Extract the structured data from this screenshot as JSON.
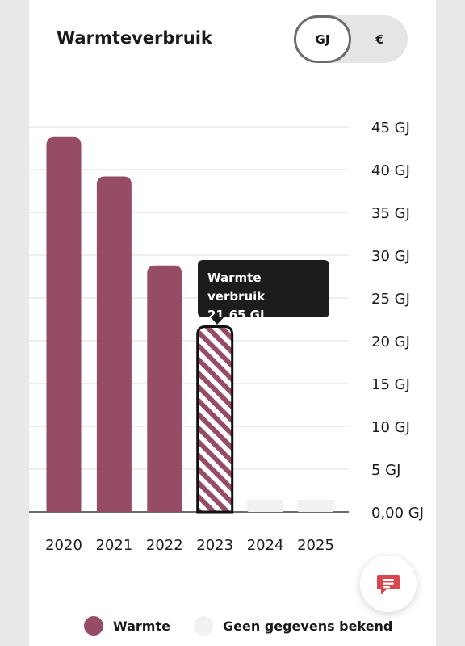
{
  "title": "Warmteverbruik",
  "toggle": {
    "options": [
      "GJ",
      "€"
    ],
    "selected": "GJ"
  },
  "colors": {
    "warmte": "#974c65",
    "no_data": "#f1f1f1",
    "grid": "#dcdcdc",
    "tooltip_bg": "#1c1c1c"
  },
  "icons": {
    "fab": "chat-icon"
  },
  "chart_data": {
    "type": "bar",
    "unit": "GJ",
    "categories": [
      "2020",
      "2021",
      "2022",
      "2023",
      "2024",
      "2025"
    ],
    "values": [
      43.8,
      39.2,
      28.8,
      21.65,
      null,
      null
    ],
    "status": [
      "warmte",
      "warmte",
      "warmte",
      "selected",
      "no_data",
      "no_data"
    ],
    "y_ticks": [
      0,
      5,
      10,
      15,
      20,
      25,
      30,
      35,
      40,
      45
    ],
    "y_tick_labels": [
      "0,00 GJ",
      "5 GJ",
      "10 GJ",
      "15 GJ",
      "20 GJ",
      "25 GJ",
      "30 GJ",
      "35 GJ",
      "40 GJ",
      "45 GJ"
    ],
    "ylim": [
      0,
      45
    ],
    "grid": true,
    "axis_position": "right",
    "legend_position": "bottom",
    "legend": [
      {
        "label": "Warmte",
        "color": "#974c65"
      },
      {
        "label": "Geen gegevens bekend",
        "color": "#f1f1f1"
      }
    ],
    "tooltip": {
      "title": "Warmte verbruik",
      "value": "21,65 GJ"
    }
  }
}
